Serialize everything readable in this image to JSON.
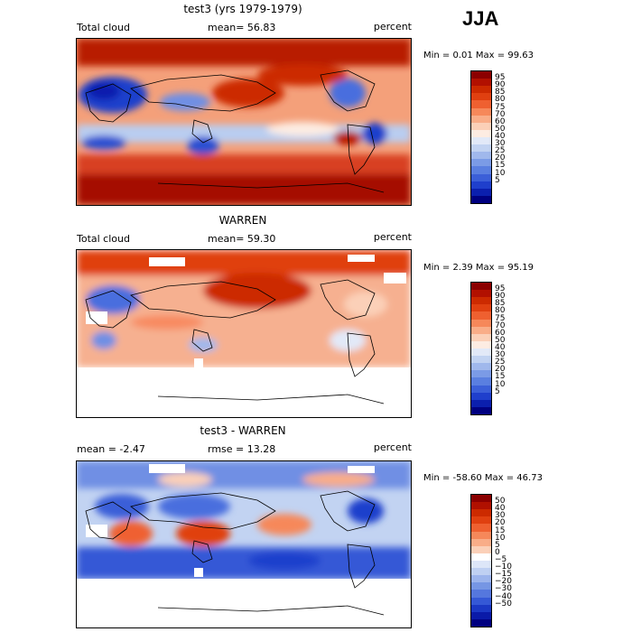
{
  "season": "JJA",
  "panels": [
    {
      "title": "test3 (yrs 1979-1979)",
      "left_label": "Total cloud",
      "center_label": "mean=  56.83",
      "units": "percent",
      "minmax": "Min =   0.01 Max =  99.63",
      "colorbar": {
        "colors": [
          "#8b0000",
          "#b21000",
          "#cc2a00",
          "#e04010",
          "#ef6030",
          "#f6885a",
          "#f9ad88",
          "#fbd0b8",
          "#fdece2",
          "#e2e9f8",
          "#c2d3f2",
          "#a0b8ec",
          "#7b9be6",
          "#5a7fe0",
          "#3b5fd8",
          "#1f3fcc",
          "#0b1fae",
          "#000080"
        ],
        "labels": [
          "95",
          "90",
          "85",
          "80",
          "75",
          "70",
          "60",
          "50",
          "40",
          "30",
          "25",
          "20",
          "15",
          "10",
          "5"
        ]
      }
    },
    {
      "title": "WARREN",
      "left_label": "Total cloud",
      "center_label": "mean=  59.30",
      "units": "percent",
      "minmax": "Min =   2.39 Max =  95.19",
      "colorbar": {
        "colors": [
          "#8b0000",
          "#b21000",
          "#cc2a00",
          "#e04010",
          "#ef6030",
          "#f6885a",
          "#f9ad88",
          "#fbd0b8",
          "#fdece2",
          "#e2e9f8",
          "#c2d3f2",
          "#a0b8ec",
          "#7b9be6",
          "#5a7fe0",
          "#3b5fd8",
          "#1f3fcc",
          "#0b1fae",
          "#000080"
        ],
        "labels": [
          "95",
          "90",
          "85",
          "80",
          "75",
          "70",
          "60",
          "50",
          "40",
          "30",
          "25",
          "20",
          "15",
          "10",
          "5"
        ]
      }
    },
    {
      "title": "test3 - WARREN",
      "left_label": "mean =  -2.47",
      "center_label": "rmse =  13.28",
      "units": "percent",
      "minmax": "Min = -58.60 Max =  46.73",
      "colorbar": {
        "colors": [
          "#8b0000",
          "#b01000",
          "#cc2a00",
          "#e04010",
          "#ef6030",
          "#f6885a",
          "#f9ad88",
          "#fbd0b8",
          "#ffffff",
          "#dde6f8",
          "#bfd0f2",
          "#9cb4ec",
          "#7696e4",
          "#5577de",
          "#3558d6",
          "#1b38c4",
          "#0a1aa8",
          "#000080"
        ],
        "labels": [
          "50",
          "40",
          "30",
          "20",
          "15",
          "10",
          "5",
          "0",
          "−5",
          "−10",
          "−15",
          "−20",
          "−30",
          "−40",
          "−50"
        ]
      }
    }
  ]
}
